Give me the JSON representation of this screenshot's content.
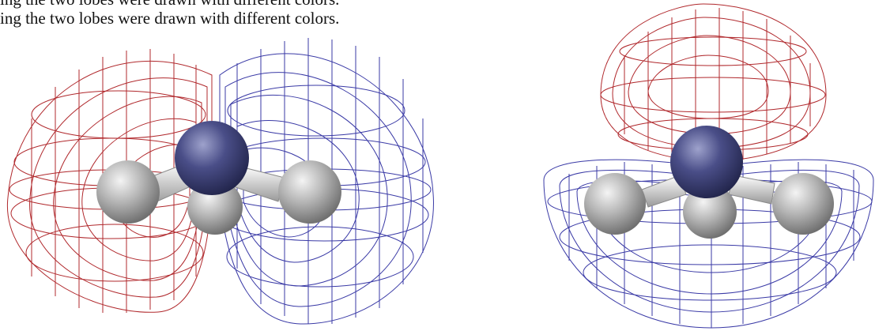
{
  "caption": {
    "line1": "ing the two lobes were drawn with different colors.",
    "line2": "ing the two lobes were drawn with different colors."
  },
  "figures": [
    {
      "name": "orbital-lobes-side-view",
      "lobe_colors": [
        "#b0282c",
        "#3a3aa6"
      ]
    },
    {
      "name": "orbital-lobes-top-bottom-view",
      "lobe_colors": [
        "#b0282c",
        "#3a3aa6"
      ]
    }
  ],
  "colors": {
    "positive_lobe": "#b0282c",
    "negative_lobe": "#3a3aa6",
    "central_atom": "#3c3f78",
    "hydrogen_atom": "#a9a9a9",
    "bond": "#dcdcdc"
  }
}
